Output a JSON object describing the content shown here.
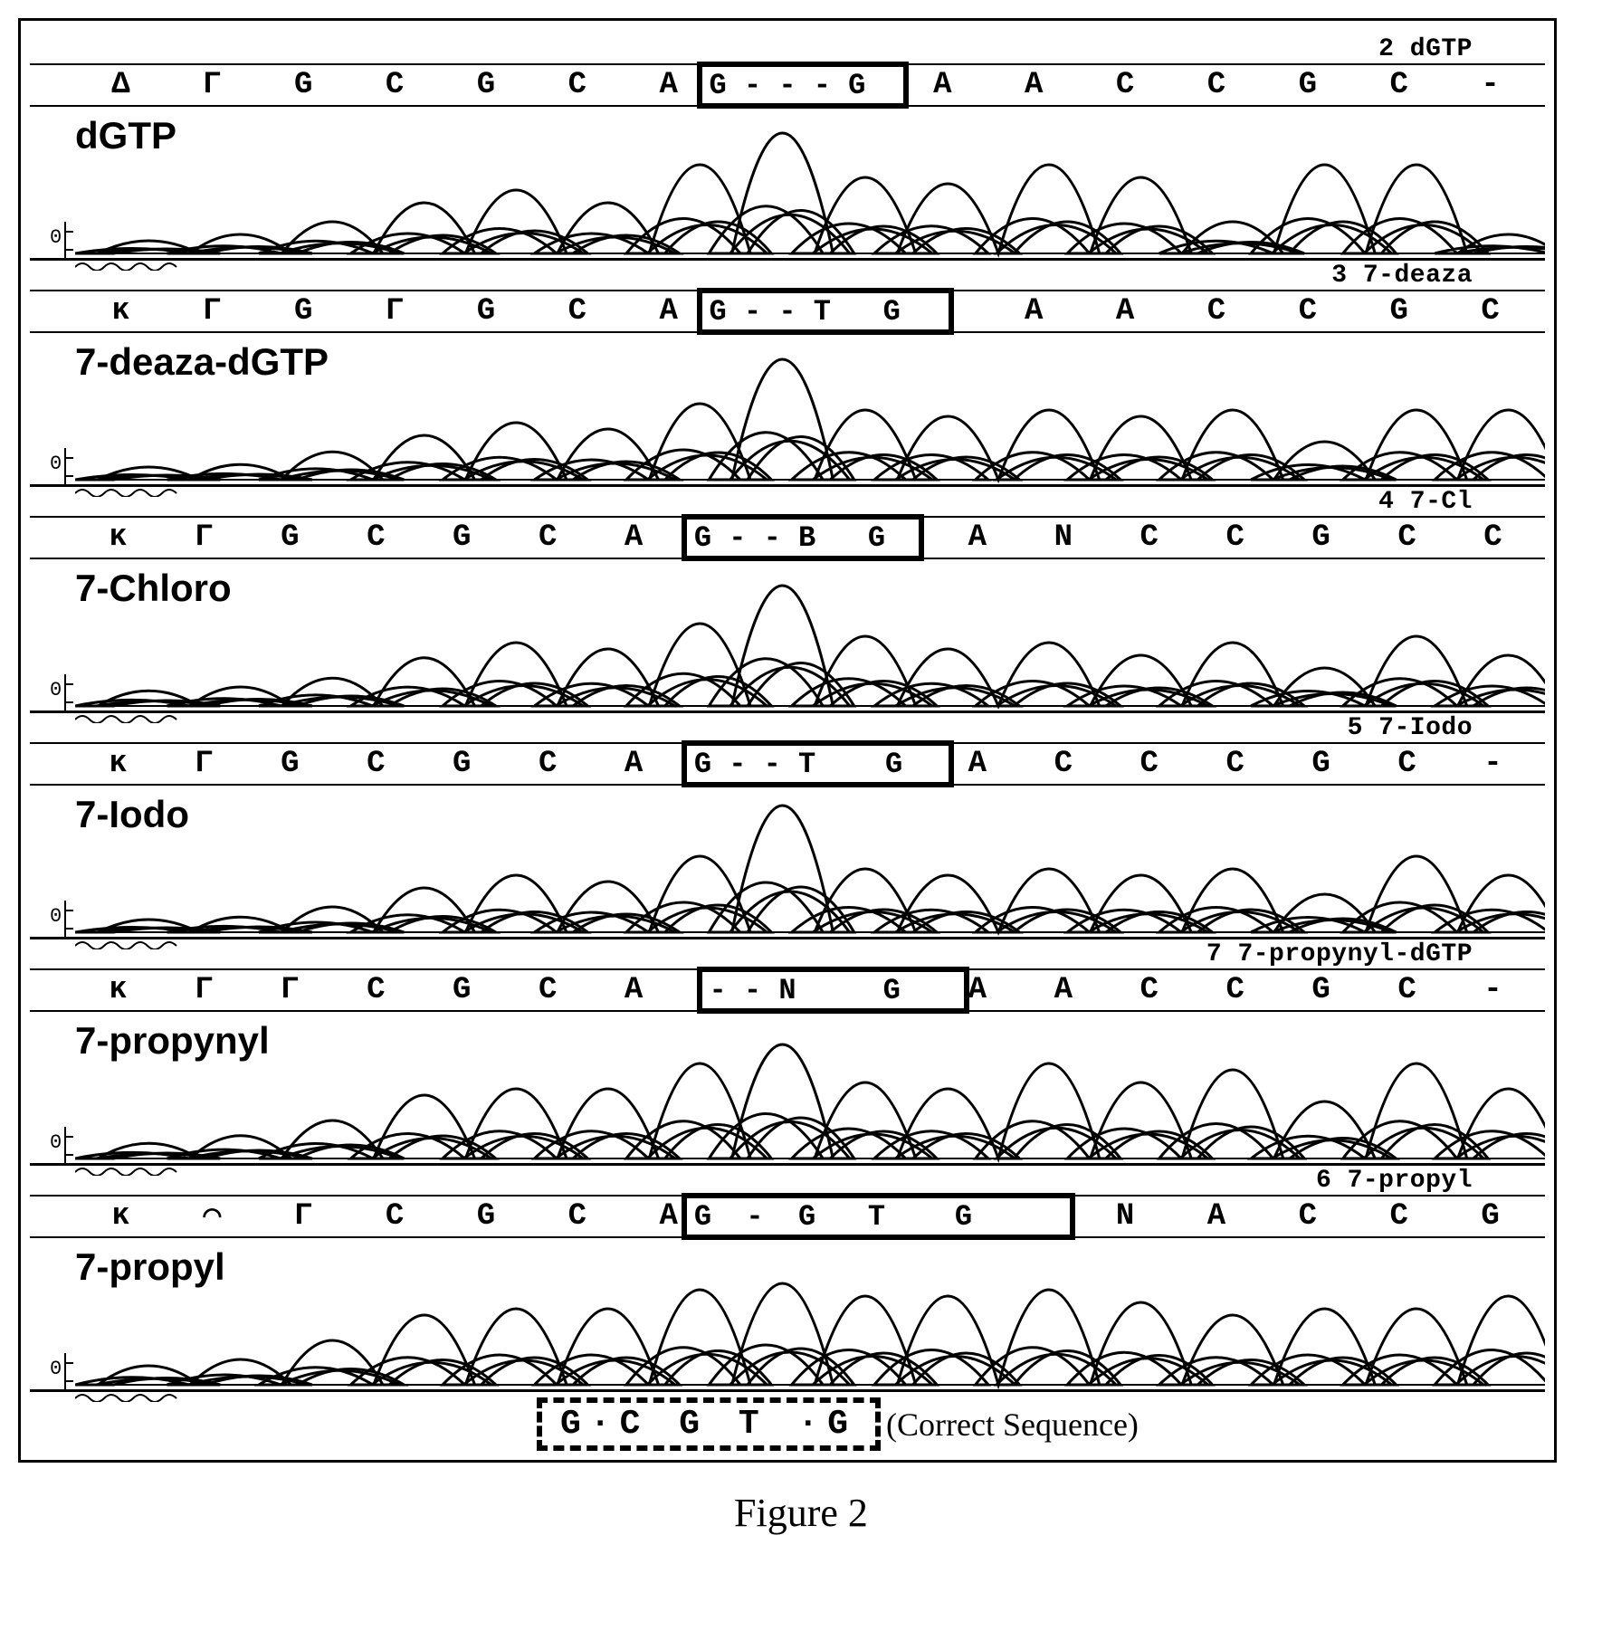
{
  "caption": "Figure 2",
  "correct_sequence_text": "G·C G   T ·G",
  "correct_sequence_label": "(Correct Sequence)",
  "stroke_color": "#000000",
  "stroke_width": 3,
  "panels": [
    {
      "label": "dGTP",
      "header": "2 dGTP",
      "bases": [
        "Δ",
        "Γ",
        "G",
        "C",
        "G",
        "C",
        "A",
        "",
        "",
        "A",
        "A",
        "C",
        "C",
        "G",
        "C",
        "-"
      ],
      "highlight": {
        "text": "G - - - G",
        "left_pct": 44,
        "width_pct": 14
      }
    },
    {
      "label": "7-deaza-dGTP",
      "header": "3 7-deaza",
      "bases": [
        "κ",
        "Γ",
        "G",
        "Γ",
        "G",
        "C",
        "A",
        "",
        "",
        "",
        "A",
        "A",
        "C",
        "C",
        "G",
        "C"
      ],
      "highlight": {
        "text": "G - - T   G",
        "left_pct": 44,
        "width_pct": 17
      }
    },
    {
      "label": "7-Chloro",
      "header": "4 7-Cl",
      "bases": [
        "κ",
        "Γ",
        "G",
        "C",
        "G",
        "C",
        "A",
        "",
        "",
        "",
        "A",
        "N",
        "C",
        "C",
        "G",
        "C",
        "C"
      ],
      "highlight": {
        "text": "G - - B   G",
        "left_pct": 43,
        "width_pct": 16
      }
    },
    {
      "label": "7-Iodo",
      "header": "5 7-Iodo",
      "bases": [
        "κ",
        "Γ",
        "G",
        "C",
        "G",
        "C",
        "A",
        "",
        "",
        "",
        "A",
        "C",
        "C",
        "C",
        "G",
        "C",
        "-"
      ],
      "highlight": {
        "text": "G - - T    G",
        "left_pct": 43,
        "width_pct": 18
      }
    },
    {
      "label": "7-propynyl",
      "header": "7 7-propynyl-dGTP",
      "bases": [
        "κ",
        "Γ",
        "Γ",
        "C",
        "G",
        "C",
        "A",
        "",
        "",
        "",
        "A",
        "A",
        "C",
        "C",
        "G",
        "C",
        "-"
      ],
      "highlight": {
        "text": "- - N     G",
        "left_pct": 44,
        "width_pct": 18
      }
    },
    {
      "label": "7-propyl",
      "header": "6 7-propyl",
      "bases": [
        "κ",
        "◠",
        "Γ",
        "C",
        "G",
        "C",
        "A",
        "",
        "",
        "",
        "",
        "N",
        "A",
        "C",
        "C",
        "G"
      ],
      "highlight": {
        "text": "G  -  G   T    G",
        "left_pct": 43,
        "width_pct": 26
      }
    }
  ],
  "chromatogram_traces": {
    "comment": "Four overlapping traces per panel, rough peak shapes estimated from figure. Values are y relative (0-100). Width units 0-1600.",
    "trace_count": 4,
    "peak_centers": [
      80,
      180,
      280,
      380,
      480,
      580,
      680,
      770,
      860,
      950,
      1060,
      1160,
      1260,
      1360,
      1460,
      1560
    ],
    "panel_peaks": {
      "dGTP": [
        10,
        15,
        25,
        40,
        50,
        40,
        70,
        95,
        60,
        55,
        70,
        60,
        25,
        70,
        70,
        15
      ],
      "7-deaza-dGTP": [
        10,
        12,
        22,
        35,
        45,
        40,
        60,
        95,
        55,
        50,
        55,
        50,
        55,
        30,
        55,
        55
      ],
      "7-Chloro": [
        12,
        15,
        22,
        38,
        50,
        45,
        65,
        95,
        55,
        45,
        50,
        40,
        50,
        30,
        55,
        40
      ],
      "7-Iodo": [
        10,
        12,
        20,
        35,
        45,
        40,
        60,
        100,
        50,
        45,
        50,
        45,
        50,
        30,
        60,
        45
      ],
      "7-propynyl": [
        12,
        18,
        30,
        50,
        55,
        55,
        75,
        90,
        60,
        55,
        75,
        60,
        70,
        45,
        75,
        55
      ],
      "7-propyl": [
        15,
        20,
        35,
        55,
        60,
        60,
        75,
        80,
        70,
        70,
        75,
        65,
        55,
        60,
        60,
        70
      ]
    }
  },
  "colors": {
    "background": "#ffffff",
    "line": "#000000",
    "text": "#000000"
  },
  "font_sizes": {
    "panel_label": 42,
    "base": 34,
    "header": 28,
    "caption": 44,
    "correct_seq": 38
  }
}
